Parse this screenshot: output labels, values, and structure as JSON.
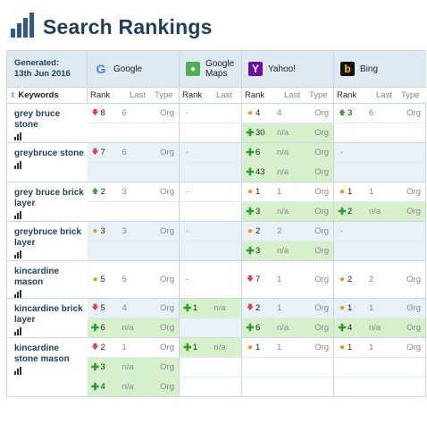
{
  "page": {
    "title": "Search Rankings"
  },
  "generated": {
    "label": "Generated:",
    "date": "13th Jun 2016"
  },
  "engines": [
    {
      "name": "Google",
      "icon": "google-icon"
    },
    {
      "name": "Google Maps",
      "icon": "google-maps-icon"
    },
    {
      "name": "Yahoo!",
      "icon": "yahoo-icon"
    },
    {
      "name": "Bing",
      "icon": "bing-icon"
    }
  ],
  "columns": {
    "keywords": "Keywords",
    "rank": "Rank",
    "last": "Last",
    "type": "Type"
  },
  "keywords": [
    {
      "name": "grey bruce stone",
      "rows": [
        [
          {
            "mark": "down",
            "rank": "8",
            "last": "6",
            "type": "Org"
          },
          {
            "dash": true
          },
          {
            "mark": "dot",
            "rank": "4",
            "last": "4",
            "type": "Org"
          },
          {
            "mark": "up",
            "rank": "3",
            "last": "6",
            "type": "Org"
          }
        ],
        [
          {
            "empty": true
          },
          {
            "empty": true
          },
          {
            "mark": "plus",
            "rank": "30",
            "last": "n/a",
            "type": "Org",
            "green": true
          },
          {
            "empty": true
          }
        ]
      ]
    },
    {
      "name": "greybruce stone",
      "rows": [
        [
          {
            "mark": "down",
            "rank": "7",
            "last": "6",
            "type": "Org"
          },
          {
            "dash": true
          },
          {
            "mark": "plus",
            "rank": "6",
            "last": "n/a",
            "type": "Org",
            "green": true
          },
          {
            "dash": true
          }
        ],
        [
          {
            "empty": true
          },
          {
            "empty": true
          },
          {
            "mark": "plus",
            "rank": "43",
            "last": "n/a",
            "type": "Org",
            "green": true
          },
          {
            "empty": true
          }
        ]
      ]
    },
    {
      "name": "grey bruce brick layer",
      "rows": [
        [
          {
            "mark": "up",
            "rank": "2",
            "last": "3",
            "type": "Org"
          },
          {
            "dash": true
          },
          {
            "mark": "dot",
            "rank": "1",
            "last": "1",
            "type": "Org"
          },
          {
            "mark": "dot",
            "rank": "1",
            "last": "1",
            "type": "Org"
          }
        ],
        [
          {
            "empty": true
          },
          {
            "empty": true
          },
          {
            "mark": "plus",
            "rank": "3",
            "last": "n/a",
            "type": "Org",
            "green": true
          },
          {
            "mark": "plus",
            "rank": "2",
            "last": "n/a",
            "type": "Org",
            "green": true
          }
        ]
      ]
    },
    {
      "name": "greybruce brick layer",
      "rows": [
        [
          {
            "mark": "dot",
            "rank": "3",
            "last": "3",
            "type": "Org"
          },
          {
            "dash": true
          },
          {
            "mark": "dot",
            "rank": "2",
            "last": "2",
            "type": "Org"
          },
          {
            "dash": true
          }
        ],
        [
          {
            "empty": true
          },
          {
            "empty": true
          },
          {
            "mark": "plus",
            "rank": "3",
            "last": "n/a",
            "type": "Org",
            "green": true
          },
          {
            "empty": true
          }
        ]
      ]
    },
    {
      "name": "kincardine mason",
      "rows": [
        [
          {
            "mark": "dot",
            "rank": "5",
            "last": "5",
            "type": "Org"
          },
          {
            "dash": true
          },
          {
            "mark": "down",
            "rank": "7",
            "last": "1",
            "type": "Org"
          },
          {
            "mark": "dot",
            "rank": "2",
            "last": "2",
            "type": "Org"
          }
        ]
      ]
    },
    {
      "name": "kincardine brick layer",
      "rows": [
        [
          {
            "mark": "down",
            "rank": "5",
            "last": "4",
            "type": "Org"
          },
          {
            "mark": "plus",
            "rank": "1",
            "last": "n/a",
            "type": "",
            "green": true
          },
          {
            "mark": "down",
            "rank": "2",
            "last": "1",
            "type": "Org"
          },
          {
            "mark": "dot",
            "rank": "1",
            "last": "1",
            "type": "Org"
          }
        ],
        [
          {
            "mark": "plus",
            "rank": "6",
            "last": "n/a",
            "type": "Org",
            "green": true
          },
          {
            "empty": true
          },
          {
            "mark": "plus",
            "rank": "6",
            "last": "n/a",
            "type": "Org",
            "green": true
          },
          {
            "mark": "plus",
            "rank": "4",
            "last": "n/a",
            "type": "Org",
            "green": true
          }
        ]
      ]
    },
    {
      "name": "kincardine stone mason",
      "rows": [
        [
          {
            "mark": "down",
            "rank": "2",
            "last": "1",
            "type": "Org"
          },
          {
            "mark": "plus",
            "rank": "1",
            "last": "n/a",
            "type": "",
            "green": true
          },
          {
            "mark": "dot",
            "rank": "1",
            "last": "1",
            "type": "Org"
          },
          {
            "mark": "dot",
            "rank": "1",
            "last": "1",
            "type": "Org"
          }
        ],
        [
          {
            "mark": "plus",
            "rank": "3",
            "last": "n/a",
            "type": "Org",
            "green": true
          },
          {
            "empty": true
          },
          {
            "empty": true
          },
          {
            "empty": true
          }
        ],
        [
          {
            "mark": "plus",
            "rank": "4",
            "last": "n/a",
            "type": "Org",
            "green": true
          },
          {
            "empty": true
          },
          {
            "empty": true
          },
          {
            "empty": true
          }
        ]
      ]
    }
  ]
}
